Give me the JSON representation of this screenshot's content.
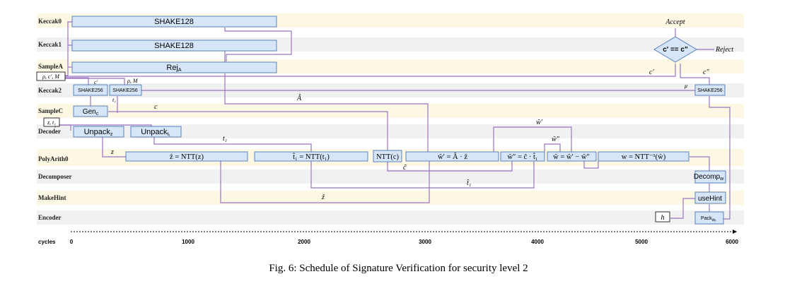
{
  "lanes": [
    "Keccak0",
    "Keccak1",
    "SampleA",
    "Keccak2",
    "SampleC",
    "Decoder",
    "PolyArith0",
    "Decomposer",
    "MakeHint",
    "Encoder"
  ],
  "axis": {
    "label": "cycles",
    "ticks": [
      "0",
      "1000",
      "2000",
      "3000",
      "4000",
      "5000",
      "6000"
    ]
  },
  "boxes": {
    "keccak0_shake": "SHAKE128",
    "keccak1_shake": "SHAKE128",
    "rej": "Rej",
    "rej_sub": "A",
    "shake256_a": "SHAKE256",
    "shake256_b": "SHAKE256",
    "shake256_c": "SHAKE256",
    "gen": "Gen",
    "gen_sub": "c",
    "unpack_z": "Unpack",
    "unpack_z_sub": "z",
    "unpack_t1": "Unpack",
    "unpack_t1_sub": "t₁",
    "ntt_z": "ẑ = NTT(z)",
    "ntt_t1": "t̂₁ = NTT(t₁)",
    "ntt_c": "NTT(c)",
    "w_prime": "ŵ′ = Â · ẑ",
    "w_dprime": "ŵ″ = ĉ · t̂₁",
    "w_hat": "ŵ = ŵ′ − ŵ″",
    "intt": "w = NTT⁻¹(ŵ)",
    "decomp": "Decomp",
    "decomp_sub": "w",
    "usehint": "useHint",
    "pack": "Pack",
    "pack_sub": "w₁",
    "compare": "c' == c\""
  },
  "inputs": {
    "rho_c_m": "ρ, c′, M",
    "z_t1": "z, t₁",
    "h": "h"
  },
  "flow_labels": {
    "c_prime_small": "c′",
    "rho_m_small": "ρ, M",
    "t1_small": "t₁",
    "a_hat": "Â",
    "c": "c",
    "t1": "t₁",
    "z": "z",
    "c_hat": "ĉ",
    "t1_hat": "t̂₁",
    "z_hat": "ẑ",
    "w_prime": "ŵ′",
    "w_dprime": "ŵ″",
    "mu": "μ",
    "c_prime": "c′",
    "c_dprime": "c″",
    "accept": "Accept",
    "reject": "Reject"
  },
  "caption": "Fig. 6: Schedule of Signature Verification for security level 2"
}
